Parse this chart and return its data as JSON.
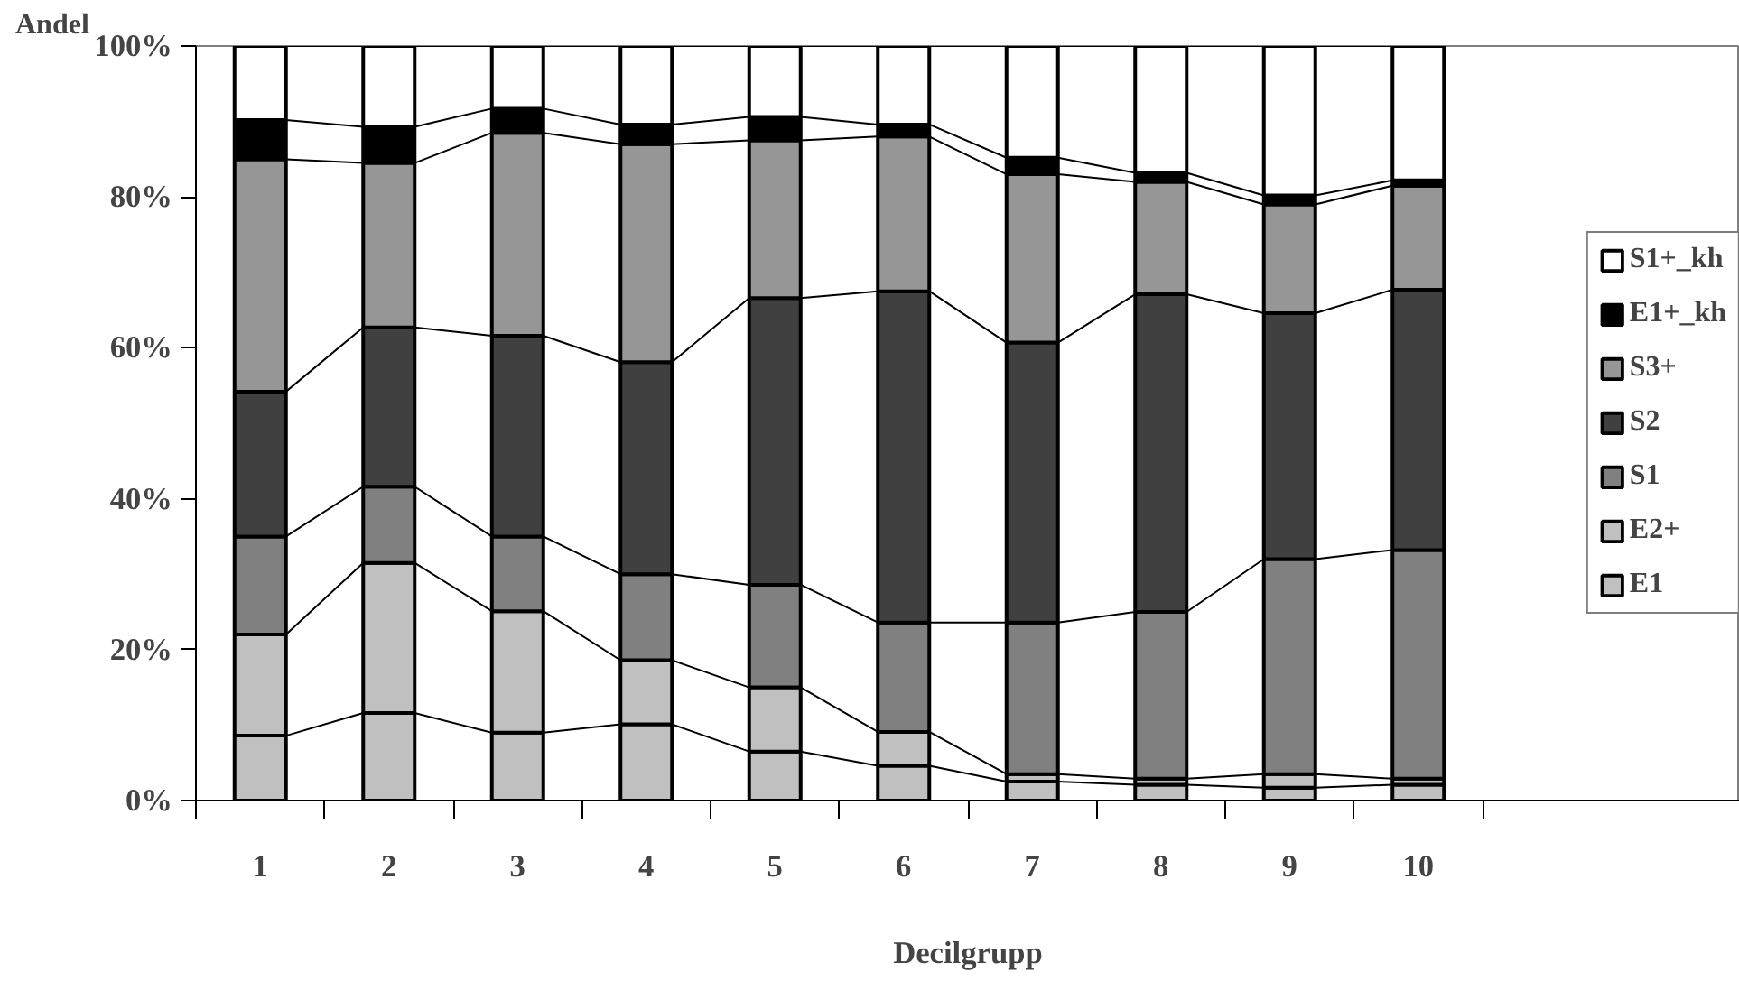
{
  "chart_data": {
    "type": "bar",
    "stacked": true,
    "xlabel": "Decilgrupp",
    "ylabel": "Andel",
    "categories": [
      "1",
      "2",
      "3",
      "4",
      "5",
      "6",
      "7",
      "8",
      "9",
      "10"
    ],
    "series": [
      {
        "name": "E1",
        "color": "#c0c0c0",
        "values": [
          8.6,
          11.6,
          9,
          10.1,
          6.5,
          4.6,
          2.5,
          2.1,
          1.7,
          2.1
        ]
      },
      {
        "name": "E2+",
        "color": "#c0c0c0",
        "values": [
          13.4,
          19.9,
          16.1,
          8.5,
          8.5,
          4.5,
          1.0,
          0.8,
          1.8,
          0.8
        ]
      },
      {
        "name": "S1",
        "color": "#808080",
        "values": [
          13,
          10.1,
          9.9,
          11.4,
          13.6,
          14.5,
          20.1,
          22.1,
          28.5,
          30.3
        ]
      },
      {
        "name": "S2",
        "color": "#404040",
        "values": [
          19.2,
          21.1,
          26.6,
          28.1,
          38,
          43.9,
          37.1,
          42.1,
          32.6,
          34.5
        ]
      },
      {
        "name": "S3+",
        "color": "#969696",
        "values": [
          30.8,
          21.8,
          26.9,
          28.9,
          20.9,
          20.5,
          22.3,
          14.9,
          14.4,
          13.8
        ]
      },
      {
        "name": "E1+_kh",
        "color": "#000000",
        "values": [
          5.2,
          4.8,
          3.2,
          2.6,
          3.1,
          1.6,
          2.2,
          1.2,
          1.2,
          0.7
        ]
      },
      {
        "name": "S1+_kh",
        "color": "#ffffff",
        "values": [
          9.8,
          10.7,
          8.3,
          10.4,
          9.4,
          10.4,
          14.8,
          16.8,
          19.8,
          17.8
        ]
      }
    ],
    "ylim": [
      0,
      100
    ],
    "yticks": [
      {
        "value": 0,
        "label": "0%"
      },
      {
        "value": 20,
        "label": "20%"
      },
      {
        "value": 40,
        "label": "40%"
      },
      {
        "value": 60,
        "label": "60%"
      },
      {
        "value": 80,
        "label": "80%"
      },
      {
        "value": 100,
        "label": "100%"
      }
    ],
    "grid": false,
    "legend": "right"
  }
}
